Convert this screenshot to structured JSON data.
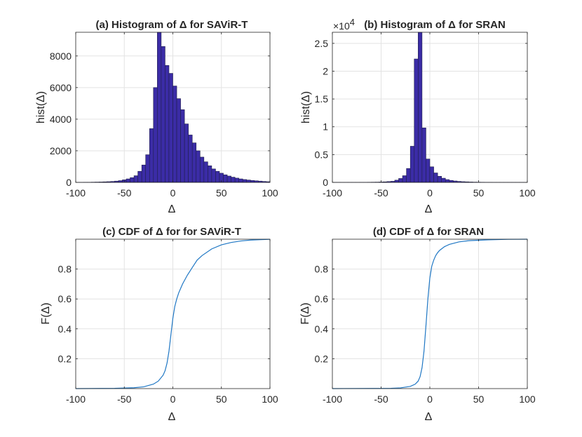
{
  "colors": {
    "bar_fill": "#3b2ca6",
    "bar_edge": "#1f1f4a",
    "cdf_line": "#1f77c4",
    "grid": "#e3e3e3",
    "axis": "#262626"
  },
  "chart_data": [
    {
      "id": "a",
      "type": "bar",
      "title": "(a) Histogram of Δ for SAViR-T",
      "xlabel": "Δ",
      "ylabel": "hist(Δ)",
      "xlim": [
        -100,
        100
      ],
      "ylim": [
        0,
        9500
      ],
      "xticks": [
        -100,
        -50,
        0,
        50,
        100
      ],
      "xtick_labels": [
        "-100",
        "-50",
        "0",
        "50",
        "100"
      ],
      "yticks": [
        0,
        2000,
        4000,
        6000,
        8000
      ],
      "ytick_labels": [
        "0",
        "2000",
        "4000",
        "6000",
        "8000"
      ],
      "bin_edges_start": -100,
      "bin_width": 4,
      "values": [
        5,
        5,
        10,
        10,
        15,
        20,
        25,
        35,
        45,
        60,
        80,
        110,
        160,
        220,
        300,
        420,
        700,
        1100,
        1750,
        3400,
        6000,
        9500,
        8600,
        7400,
        6900,
        6100,
        5300,
        4600,
        3700,
        3000,
        2500,
        2000,
        1600,
        1300,
        1050,
        850,
        700,
        580,
        480,
        400,
        330,
        270,
        220,
        180,
        150,
        120,
        100,
        80,
        60,
        45
      ],
      "grid": true
    },
    {
      "id": "b",
      "type": "bar",
      "title": "(b) Histogram of Δ for SRAN",
      "xlabel": "Δ",
      "ylabel": "hist(Δ)",
      "y_exponent_label": "×10",
      "y_exponent": "4",
      "xlim": [
        -100,
        100
      ],
      "ylim": [
        0,
        2.7
      ],
      "xticks": [
        -100,
        -50,
        0,
        50,
        100
      ],
      "xtick_labels": [
        "-100",
        "-50",
        "0",
        "50",
        "100"
      ],
      "yticks": [
        0,
        0.5,
        1,
        1.5,
        2,
        2.5
      ],
      "ytick_labels": [
        "0",
        "0.5",
        "1",
        "1.5",
        "2",
        "2.5"
      ],
      "bin_edges_start": -100,
      "bin_width": 4,
      "values": [
        0.001,
        0.001,
        0.001,
        0.001,
        0.001,
        0.001,
        0.001,
        0.002,
        0.002,
        0.003,
        0.004,
        0.005,
        0.007,
        0.01,
        0.015,
        0.02,
        0.04,
        0.07,
        0.12,
        0.25,
        0.65,
        2.22,
        2.75,
        0.98,
        0.42,
        0.28,
        0.17,
        0.11,
        0.075,
        0.05,
        0.035,
        0.025,
        0.018,
        0.013,
        0.01,
        0.007,
        0.005,
        0.004,
        0.003,
        0.002,
        0.002,
        0.001,
        0.001,
        0.001,
        0.001,
        0.001,
        0.001,
        0.001,
        0.001,
        0.001
      ],
      "grid": true
    },
    {
      "id": "c",
      "type": "line",
      "title": "(c) CDF of Δ for for SAViR-T",
      "xlabel": "Δ",
      "ylabel": "F(Δ)",
      "xlim": [
        -100,
        100
      ],
      "ylim": [
        0,
        1
      ],
      "xticks": [
        -100,
        -50,
        0,
        50,
        100
      ],
      "xtick_labels": [
        "-100",
        "-50",
        "0",
        "50",
        "100"
      ],
      "yticks": [
        0.2,
        0.4,
        0.6,
        0.8
      ],
      "ytick_labels": [
        "0.2",
        "0.4",
        "0.6",
        "0.8"
      ],
      "x": [
        -100,
        -60,
        -40,
        -30,
        -20,
        -15,
        -10,
        -8,
        -6,
        -4,
        -2,
        0,
        2,
        4,
        6,
        8,
        10,
        15,
        20,
        25,
        30,
        40,
        50,
        60,
        70,
        80,
        90,
        100
      ],
      "y": [
        0.0,
        0.002,
        0.006,
        0.012,
        0.03,
        0.05,
        0.09,
        0.12,
        0.17,
        0.25,
        0.36,
        0.47,
        0.55,
        0.6,
        0.64,
        0.67,
        0.7,
        0.76,
        0.81,
        0.86,
        0.89,
        0.935,
        0.962,
        0.978,
        0.988,
        0.994,
        0.997,
        0.999
      ],
      "grid": true
    },
    {
      "id": "d",
      "type": "line",
      "title": "(d) CDF of Δ for SRAN",
      "xlabel": "Δ",
      "ylabel": "F(Δ)",
      "xlim": [
        -100,
        100
      ],
      "ylim": [
        0,
        1
      ],
      "xticks": [
        -100,
        -50,
        0,
        50,
        100
      ],
      "xtick_labels": [
        "-100",
        "-50",
        "0",
        "50",
        "100"
      ],
      "yticks": [
        0.2,
        0.4,
        0.6,
        0.8
      ],
      "ytick_labels": [
        "0.2",
        "0.4",
        "0.6",
        "0.8"
      ],
      "x": [
        -100,
        -40,
        -30,
        -20,
        -15,
        -12,
        -10,
        -8,
        -6,
        -4,
        -2,
        0,
        2,
        4,
        6,
        8,
        10,
        15,
        20,
        30,
        40,
        60,
        80,
        100
      ],
      "y": [
        0.0,
        0.002,
        0.005,
        0.015,
        0.03,
        0.05,
        0.08,
        0.14,
        0.25,
        0.42,
        0.6,
        0.74,
        0.82,
        0.86,
        0.89,
        0.91,
        0.925,
        0.95,
        0.965,
        0.982,
        0.99,
        0.996,
        0.999,
        1.0
      ],
      "grid": true
    }
  ]
}
